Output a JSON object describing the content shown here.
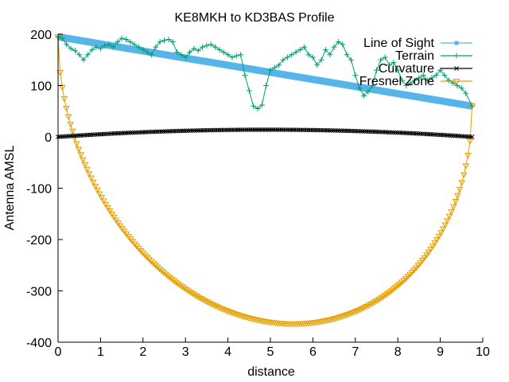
{
  "chart_data": {
    "type": "line",
    "title": "KE8MKH to KD3BAS Profile",
    "xlabel": "distance",
    "ylabel": "Antenna AMSL",
    "xlim": [
      0,
      10
    ],
    "ylim": [
      -400,
      200
    ],
    "xticks": [
      "0",
      "1",
      "2",
      "3",
      "4",
      "5",
      "6",
      "7",
      "8",
      "9",
      "10"
    ],
    "yticks": [
      "200",
      "100",
      "0",
      "-100",
      "-200",
      "-300",
      "-400"
    ],
    "legend_position": "top-right",
    "grid": false,
    "path_end": 9.75,
    "series": [
      {
        "name": "Line of Sight",
        "color": "#56b4e9",
        "marker": "square",
        "start": 195,
        "end": 60
      },
      {
        "name": "Terrain",
        "color": "#009e73",
        "marker": "plus",
        "x": [
          0,
          0.1,
          0.2,
          0.3,
          0.4,
          0.5,
          0.6,
          0.7,
          0.8,
          0.9,
          1.0,
          1.1,
          1.2,
          1.3,
          1.4,
          1.5,
          1.6,
          1.7,
          1.8,
          1.9,
          2.0,
          2.1,
          2.2,
          2.3,
          2.4,
          2.5,
          2.6,
          2.7,
          2.8,
          2.9,
          3.0,
          3.1,
          3.2,
          3.3,
          3.4,
          3.5,
          3.6,
          3.7,
          3.8,
          3.9,
          4.0,
          4.1,
          4.2,
          4.3,
          4.4,
          4.5,
          4.6,
          4.7,
          4.8,
          4.9,
          5.0,
          5.1,
          5.2,
          5.3,
          5.4,
          5.5,
          5.6,
          5.7,
          5.8,
          5.9,
          6.0,
          6.1,
          6.2,
          6.3,
          6.4,
          6.5,
          6.6,
          6.7,
          6.8,
          6.9,
          7.0,
          7.1,
          7.2,
          7.3,
          7.4,
          7.5,
          7.6,
          7.7,
          7.8,
          7.9,
          8.0,
          8.1,
          8.2,
          8.3,
          8.4,
          8.5,
          8.6,
          8.7,
          8.8,
          8.9,
          9.0,
          9.1,
          9.2,
          9.3,
          9.4,
          9.5,
          9.6,
          9.75
        ],
        "values": [
          195,
          192,
          180,
          172,
          168,
          160,
          150,
          160,
          170,
          175,
          172,
          178,
          180,
          175,
          185,
          192,
          190,
          185,
          180,
          175,
          170,
          165,
          160,
          175,
          185,
          188,
          190,
          185,
          165,
          160,
          155,
          165,
          172,
          168,
          175,
          178,
          180,
          175,
          170,
          165,
          160,
          155,
          158,
          160,
          120,
          90,
          60,
          55,
          62,
          100,
          130,
          135,
          140,
          150,
          155,
          160,
          165,
          170,
          175,
          160,
          155,
          140,
          150,
          170,
          160,
          175,
          185,
          180,
          160,
          150,
          120,
          95,
          80,
          88,
          100,
          130,
          150,
          155,
          140,
          145,
          130,
          110,
          100,
          105,
          110,
          115,
          120,
          110,
          115,
          120,
          130,
          120,
          110,
          105,
          100,
          95,
          85,
          60
        ]
      },
      {
        "name": "Curvature",
        "color": "#000000",
        "marker": "x",
        "peak": 14
      },
      {
        "name": "Fresnel Zone",
        "color": "#e69f00",
        "marker": "triangle-down",
        "radius_scale": 312
      }
    ]
  }
}
